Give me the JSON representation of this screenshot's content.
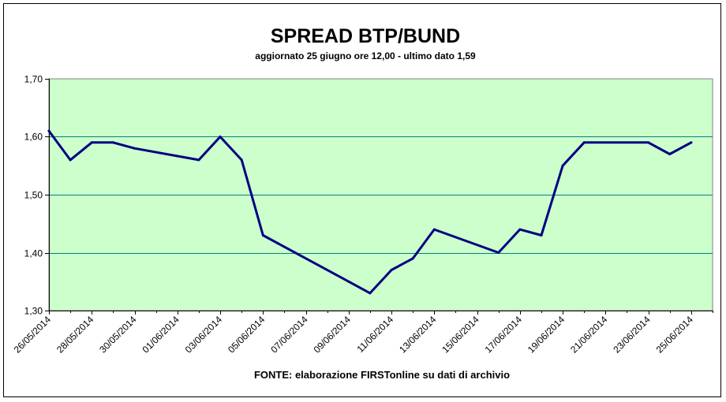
{
  "chart_data": {
    "type": "line",
    "title": "SPREAD BTP/BUND",
    "subtitle": "aggiornato 25 giugno ore 12,00 - ultimo dato 1,59",
    "source": "FONTE: elaborazione FIRSTonline su dati di archivio",
    "xlabel": "",
    "ylabel": "",
    "ylim": [
      1.3,
      1.7
    ],
    "yticks": [
      "1,70",
      "1,60",
      "1,50",
      "1,40",
      "1,30"
    ],
    "ytick_values": [
      1.7,
      1.6,
      1.5,
      1.4,
      1.3
    ],
    "xlim": [
      "2014-05-26",
      "2014-06-26"
    ],
    "xticks": [
      "26/05/2014",
      "28/05/2014",
      "30/05/2014",
      "01/06/2014",
      "03/06/2014",
      "05/06/2014",
      "07/06/2014",
      "09/06/2014",
      "11/06/2014",
      "13/06/2014",
      "15/06/2014",
      "17/06/2014",
      "19/06/2014",
      "21/06/2014",
      "23/06/2014",
      "25/06/2014"
    ],
    "grid": true,
    "legend": "none",
    "colors": {
      "plot_background": "#ccffcc",
      "line": "#000080",
      "grid": "#008080",
      "axis": "#808080"
    },
    "series": [
      {
        "x": [
          "2014-05-26",
          "2014-05-27",
          "2014-05-28",
          "2014-05-29",
          "2014-05-30",
          "2014-06-02",
          "2014-06-03",
          "2014-06-04",
          "2014-06-05",
          "2014-06-06",
          "2014-06-09",
          "2014-06-10",
          "2014-06-11",
          "2014-06-12",
          "2014-06-13",
          "2014-06-16",
          "2014-06-17",
          "2014-06-18",
          "2014-06-19",
          "2014-06-20",
          "2014-06-23",
          "2014-06-24",
          "2014-06-25"
        ],
        "values": [
          1.61,
          1.56,
          1.59,
          1.59,
          1.58,
          1.56,
          1.6,
          1.56,
          1.43,
          1.41,
          1.35,
          1.33,
          1.37,
          1.39,
          1.44,
          1.4,
          1.44,
          1.43,
          1.55,
          1.59,
          1.59,
          1.57,
          1.59
        ]
      }
    ]
  }
}
